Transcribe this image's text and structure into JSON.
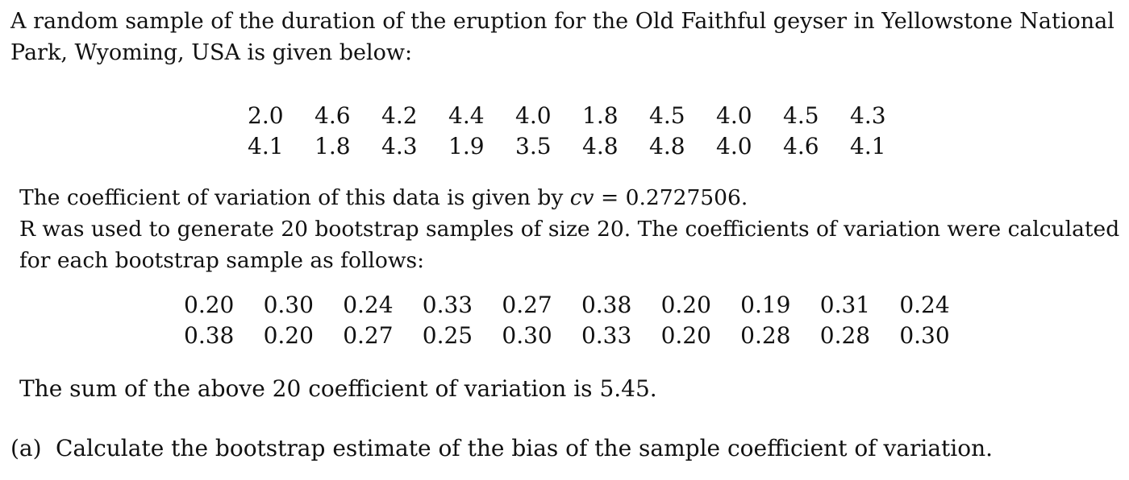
{
  "intro": {
    "line1": "A random sample of the duration of the eruption for the Old Faithful geyser in Yellowstone National",
    "line2": "Park, Wyoming, USA is given below:"
  },
  "eruption_data": {
    "rows": [
      [
        "2.0",
        "4.6",
        "4.2",
        "4.4",
        "4.0",
        "1.8",
        "4.5",
        "4.0",
        "4.5",
        "4.3"
      ],
      [
        "4.1",
        "1.8",
        "4.3",
        "1.9",
        "3.5",
        "4.8",
        "4.8",
        "4.0",
        "4.6",
        "4.1"
      ]
    ]
  },
  "cv_paragraph": {
    "line1_prefix": "The coefficient of variation of this data is given by ",
    "symbol": "cv",
    "line1_suffix": " = 0.2727506.",
    "line2": "R was used to generate 20 bootstrap samples of size 20.  The coefficients of variation were calculated",
    "line3": "for each bootstrap sample as follows:"
  },
  "bootstrap_data": {
    "rows": [
      [
        "0.20",
        "0.30",
        "0.24",
        "0.33",
        "0.27",
        "0.38",
        "0.20",
        "0.19",
        "0.31",
        "0.24"
      ],
      [
        "0.38",
        "0.20",
        "0.27",
        "0.25",
        "0.30",
        "0.33",
        "0.20",
        "0.28",
        "0.28",
        "0.30"
      ]
    ]
  },
  "sum_text": "The sum of the above 20 coefficient of variation is 5.45.",
  "question": {
    "label": "(a)",
    "text": "Calculate the bootstrap estimate of the bias of the sample coefficient of variation."
  }
}
